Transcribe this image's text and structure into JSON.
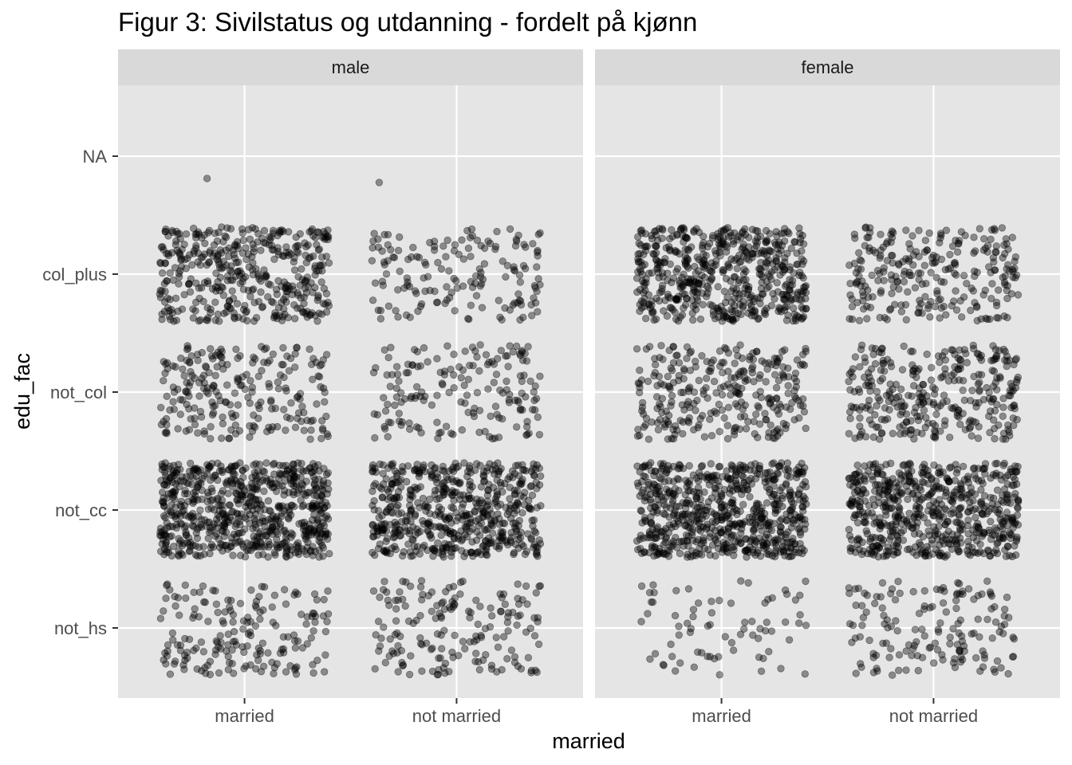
{
  "chart_data": {
    "type": "scatter",
    "subtype": "jittered categorical scatter, faceted",
    "title": "Figur 3: Sivilstatus og utdanning - fordelt på kjønn",
    "xlabel": "married",
    "ylabel": "edu_fac",
    "x_categories": [
      "married",
      "not married"
    ],
    "y_categories": [
      "not_hs",
      "not_cc",
      "not_col",
      "col_plus",
      "NA"
    ],
    "facets": [
      "male",
      "female"
    ],
    "point_color": "#000000",
    "point_opacity": 0.4,
    "panel_background": "#e5e5e5",
    "strip_background": "#d9d9d9",
    "grid": true,
    "approx_point_counts": {
      "male": {
        "married": {
          "not_hs": 180,
          "not_cc": 700,
          "not_col": 230,
          "col_plus": 420,
          "NA": 1
        },
        "not married": {
          "not_hs": 170,
          "not_cc": 580,
          "not_col": 170,
          "col_plus": 160,
          "NA": 1
        }
      },
      "female": {
        "married": {
          "not_hs": 75,
          "not_cc": 680,
          "not_col": 290,
          "col_plus": 560,
          "NA": 0
        },
        "not married": {
          "not_hs": 155,
          "not_cc": 620,
          "not_col": 320,
          "col_plus": 260,
          "NA": 0
        }
      }
    }
  }
}
